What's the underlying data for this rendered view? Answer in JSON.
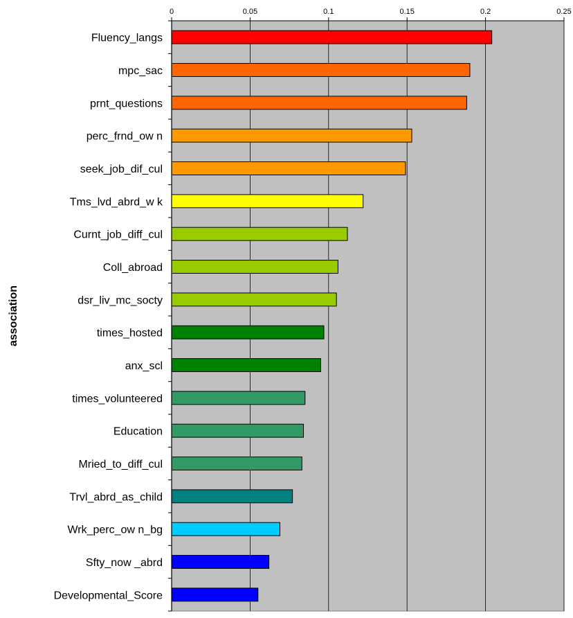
{
  "chart_data": {
    "type": "bar",
    "orientation": "horizontal",
    "title": "",
    "xlabel": "",
    "ylabel": "association",
    "xlim": [
      0,
      0.25
    ],
    "x_ticks": [
      0,
      0.05,
      0.1,
      0.15,
      0.2,
      0.25
    ],
    "x_tick_labels": [
      "0",
      "0.05",
      "0.1",
      "0.15",
      "0.2",
      "0.25"
    ],
    "x_axis_position": "top",
    "grid": true,
    "plot_background": "#c0c0c0",
    "categories": [
      "Fluency_langs",
      "mpc_sac",
      "prnt_questions",
      "perc_frnd_ow n",
      "seek_job_dif_cul",
      "Tms_lvd_abrd_w k",
      "Curnt_job_diff_cul",
      "Coll_abroad",
      "dsr_liv_mc_socty",
      "times_hosted",
      "anx_scl",
      "times_volunteered",
      "Education",
      "Mried_to_diff_cul",
      "Trvl_abrd_as_child",
      "Wrk_perc_ow n_bg",
      "Sfty_now _abrd",
      "Developmental_Score"
    ],
    "values": [
      0.204,
      0.19,
      0.188,
      0.153,
      0.149,
      0.122,
      0.112,
      0.106,
      0.105,
      0.097,
      0.095,
      0.085,
      0.084,
      0.083,
      0.077,
      0.069,
      0.062,
      0.055
    ],
    "colors": [
      "#ff0000",
      "#ff6600",
      "#ff6600",
      "#ff9900",
      "#ff9900",
      "#ffff00",
      "#99cc00",
      "#99cc00",
      "#99cc00",
      "#008000",
      "#008000",
      "#339966",
      "#339966",
      "#339966",
      "#008080",
      "#00ccff",
      "#0000ff",
      "#0000ff"
    ]
  }
}
